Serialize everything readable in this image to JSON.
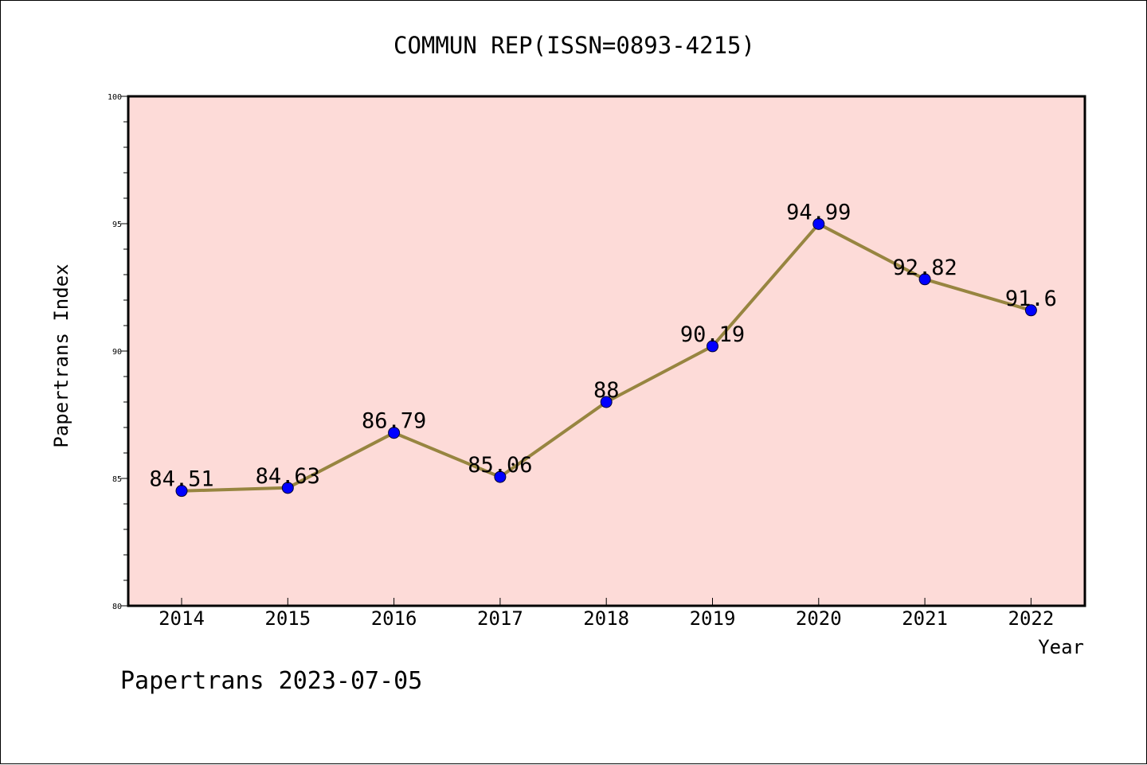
{
  "chart_data": {
    "type": "line",
    "title": "COMMUN REP(ISSN=0893-4215)",
    "xlabel": "Year",
    "ylabel": "Papertrans Index",
    "categories": [
      "2014",
      "2015",
      "2016",
      "2017",
      "2018",
      "2019",
      "2020",
      "2021",
      "2022"
    ],
    "values": [
      84.51,
      84.63,
      86.79,
      85.06,
      88,
      90.19,
      94.99,
      92.82,
      91.6
    ],
    "data_labels": [
      "84.51",
      "84.63",
      "86.79",
      "85.06",
      "88",
      "90.19",
      "94.99",
      "92.82",
      "91.6"
    ],
    "ylim": [
      80,
      100
    ],
    "y_ticks": [
      80,
      85,
      90,
      95,
      100
    ],
    "grid": false,
    "legend": "none",
    "colors": {
      "plot_background": "#fddbd8",
      "line": "#978540",
      "marker": "#0000ff",
      "axes": "#000000"
    }
  },
  "footer": {
    "text": "Papertrans 2023-07-05"
  }
}
